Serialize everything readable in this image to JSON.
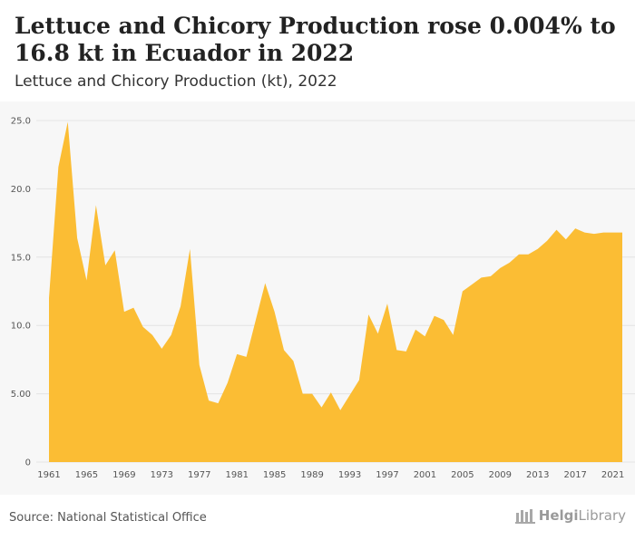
{
  "header": {
    "title": "Lettuce and Chicory Production rose 0.004% to 16.8 kt in Ecuador in 2022",
    "subtitle": "Lettuce and Chicory Production (kt), 2022"
  },
  "footer": {
    "source": "Source: National Statistical Office",
    "logo_text_bold": "Helgi",
    "logo_text": "Library"
  },
  "colors": {
    "fill": "#fbbd34",
    "grid": "#e4e4e4",
    "axis_text": "#555555"
  },
  "chart_data": {
    "type": "area",
    "title": "",
    "xlabel": "",
    "ylabel": "",
    "ylim": [
      0,
      25
    ],
    "xlim": [
      1961,
      2022
    ],
    "y_ticks": [
      "0",
      "5.00",
      "10.0",
      "15.0",
      "20.0",
      "25.0"
    ],
    "x_ticks": [
      "1961",
      "1965",
      "1969",
      "1973",
      "1977",
      "1981",
      "1985",
      "1989",
      "1993",
      "1997",
      "2001",
      "2005",
      "2009",
      "2013",
      "2017",
      "2021"
    ],
    "grid": true,
    "series": [
      {
        "x": [
          1961,
          1962,
          1963,
          1964,
          1965,
          1966,
          1967,
          1968,
          1969,
          1970,
          1971,
          1972,
          1973,
          1974,
          1975,
          1976,
          1977,
          1978,
          1979,
          1980,
          1981,
          1982,
          1983,
          1984,
          1985,
          1986,
          1987,
          1988,
          1989,
          1990,
          1991,
          1992,
          1993,
          1994,
          1995,
          1996,
          1997,
          1998,
          1999,
          2000,
          2001,
          2002,
          2003,
          2004,
          2005,
          2006,
          2007,
          2008,
          2009,
          2010,
          2011,
          2012,
          2013,
          2014,
          2015,
          2016,
          2017,
          2018,
          2019,
          2020,
          2021,
          2022
        ],
        "values": [
          12.0,
          21.6,
          24.9,
          16.4,
          13.3,
          18.8,
          14.4,
          15.5,
          11.0,
          11.3,
          9.9,
          9.3,
          8.3,
          9.3,
          11.4,
          15.6,
          7.1,
          4.5,
          4.3,
          5.8,
          7.9,
          7.7,
          10.4,
          13.1,
          11.0,
          8.2,
          7.4,
          5.0,
          5.0,
          4.0,
          5.1,
          3.8,
          4.9,
          6.0,
          10.8,
          9.4,
          11.6,
          8.2,
          8.1,
          9.7,
          9.2,
          10.7,
          10.4,
          9.3,
          12.5,
          13.0,
          13.5,
          13.6,
          14.2,
          14.6,
          15.2,
          15.2,
          15.6,
          16.2,
          17.0,
          16.3,
          17.1,
          16.8,
          16.7,
          16.8,
          16.8,
          16.8
        ]
      }
    ]
  }
}
